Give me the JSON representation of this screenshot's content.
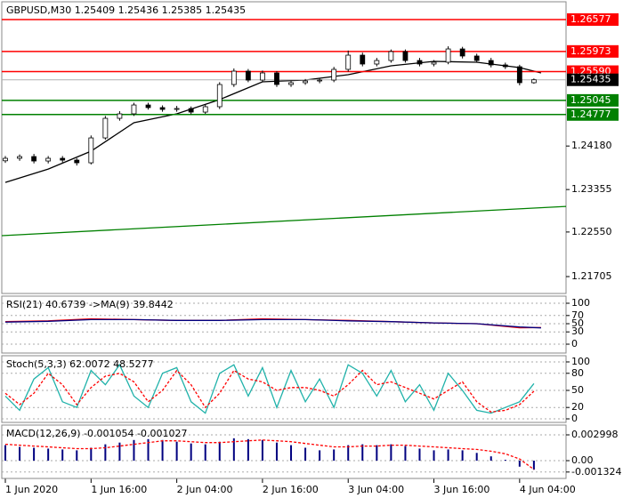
{
  "chart_data": [
    {
      "type": "candlestick",
      "title": "GBPUSD,M30  1.25409 1.25436 1.25385 1.25435",
      "x": [
        0,
        4,
        8,
        12,
        16,
        20,
        24,
        28,
        32,
        36,
        40,
        44,
        48,
        52,
        56,
        60,
        64,
        68,
        72,
        76,
        80,
        84,
        88,
        92,
        96,
        100,
        104,
        108,
        112,
        116,
        120,
        124,
        128,
        132,
        136,
        140,
        144,
        148
      ],
      "open": [
        1.239,
        1.23947,
        1.2398,
        1.23896,
        1.23947,
        1.23913,
        1.23862,
        1.24334,
        1.24705,
        1.2479,
        1.24958,
        1.24908,
        1.24874,
        1.24891,
        1.24823,
        1.24925,
        1.25346,
        1.25599,
        1.2543,
        1.25565,
        1.25346,
        1.2538,
        1.25413,
        1.2543,
        1.25633,
        1.25902,
        1.25734,
        1.25801,
        1.2597,
        1.25801,
        1.25734,
        1.25768,
        1.2602,
        1.25886,
        1.25801,
        1.25717,
        1.25683,
        1.2538
      ],
      "high": [
        1.2399,
        1.2402,
        1.2403,
        1.2399,
        1.2399,
        1.2395,
        1.2438,
        1.2475,
        1.2484,
        1.25,
        1.25,
        1.2495,
        1.2494,
        1.2493,
        1.2497,
        1.2539,
        1.2565,
        1.2564,
        1.2561,
        1.256,
        1.2542,
        1.2545,
        1.2547,
        1.2568,
        1.2599,
        1.2595,
        1.2585,
        1.2601,
        1.2601,
        1.2585,
        1.2581,
        1.2607,
        1.2606,
        1.2593,
        1.2585,
        1.2576,
        1.2572,
        1.2546
      ],
      "low": [
        1.2386,
        1.239,
        1.2385,
        1.2385,
        1.2387,
        1.2381,
        1.2383,
        1.243,
        1.2466,
        1.2475,
        1.2487,
        1.2483,
        1.2483,
        1.2478,
        1.2479,
        1.2488,
        1.253,
        1.2539,
        1.2539,
        1.253,
        1.253,
        1.2534,
        1.2537,
        1.2539,
        1.2559,
        1.2569,
        1.2569,
        1.2576,
        1.2576,
        1.2569,
        1.2569,
        1.2573,
        1.2584,
        1.2576,
        1.2567,
        1.2564,
        1.2533,
        1.2536
      ],
      "close": [
        1.23947,
        1.2398,
        1.23896,
        1.23947,
        1.23913,
        1.23862,
        1.24334,
        1.24705,
        1.2479,
        1.24958,
        1.24908,
        1.24874,
        1.24891,
        1.24823,
        1.24925,
        1.25346,
        1.25599,
        1.2543,
        1.25565,
        1.25346,
        1.2538,
        1.25413,
        1.2543,
        1.25633,
        1.25902,
        1.25734,
        1.25801,
        1.2597,
        1.25801,
        1.25734,
        1.25768,
        1.2602,
        1.25886,
        1.25801,
        1.25717,
        1.25683,
        1.2538,
        1.25435
      ],
      "up_color": "#ffffff",
      "down_color": "#000000",
      "series": [
        {
          "color": "#000000",
          "x": [
            0,
            12,
            24,
            36,
            48,
            60,
            72,
            84,
            96,
            108,
            120,
            132,
            144,
            150
          ],
          "values": [
            1.23491,
            1.23744,
            1.24082,
            1.24621,
            1.2479,
            1.25059,
            1.25397,
            1.2543,
            1.25531,
            1.257,
            1.25784,
            1.25768,
            1.25666,
            1.25565
          ]
        },
        {
          "color": "#008000",
          "x": [
            -1,
            157
          ],
          "values": [
            1.2248,
            1.23036
          ]
        }
      ],
      "levels": [
        {
          "value": 1.26577,
          "color": "#ff0000"
        },
        {
          "value": 1.25973,
          "color": "#ff0000"
        },
        {
          "value": 1.2559,
          "label": "1.25590",
          "color": "#ff0000"
        },
        {
          "value": 1.25045,
          "color": "#008000"
        },
        {
          "value": 1.24777,
          "color": "#008000"
        }
      ],
      "bid": 1.25435,
      "xlim": [
        -1,
        157
      ],
      "xticks": [
        {
          "value": 0,
          "label": "1 Jun 2020"
        },
        {
          "value": 24,
          "label": "1 Jun 16:00"
        },
        {
          "value": 48,
          "label": "2 Jun 04:00"
        },
        {
          "value": 72,
          "label": "2 Jun 16:00"
        },
        {
          "value": 96,
          "label": "3 Jun 04:00"
        },
        {
          "value": 120,
          "label": "3 Jun 16:00"
        },
        {
          "value": 144,
          "label": "4 Jun 04:00"
        }
      ],
      "ylim": [
        1.21385,
        1.26914
      ],
      "yticks": [
        {
          "value": 1.2418,
          "label": "1.24180"
        },
        1.23355,
        {
          "value": 1.2255,
          "label": "1.22550"
        },
        1.21705
      ]
    },
    {
      "type": "line",
      "title": "RSI(21) 40.6739 ->MA(9) 39.8442",
      "ylim": [
        -21.7,
        117.4
      ],
      "yticks": [
        100,
        70,
        50,
        30,
        0
      ],
      "series": [
        {
          "color": "#ff0000",
          "x": [
            0,
            12,
            24,
            36,
            48,
            60,
            72,
            84,
            96,
            108,
            120,
            132,
            144,
            150
          ],
          "values": [
            55,
            57,
            62,
            60,
            58,
            58,
            62,
            60,
            58,
            55,
            52,
            50,
            40,
            40.6739
          ]
        },
        {
          "color": "#000080",
          "x": [
            0,
            12,
            24,
            36,
            48,
            60,
            72,
            84,
            96,
            108,
            120,
            132,
            144,
            150
          ],
          "values": [
            54,
            56,
            60,
            60,
            58,
            58,
            60,
            60,
            57,
            55,
            52,
            50,
            42,
            39.8442
          ]
        }
      ]
    },
    {
      "type": "line",
      "title": "Stoch(5,3,3) 62.0072 48.5277",
      "ylim": [
        -6.25,
        110.9
      ],
      "yticks": [
        100,
        80,
        50,
        20,
        0
      ],
      "series": [
        {
          "color": "#20b2aa",
          "x": [
            0,
            4,
            8,
            12,
            16,
            20,
            24,
            28,
            32,
            36,
            40,
            44,
            48,
            52,
            56,
            60,
            64,
            68,
            72,
            76,
            80,
            84,
            88,
            92,
            96,
            100,
            104,
            108,
            112,
            116,
            120,
            124,
            128,
            132,
            136,
            140,
            144,
            148
          ],
          "values": [
            40,
            15,
            70,
            90,
            30,
            20,
            85,
            60,
            95,
            40,
            20,
            80,
            90,
            30,
            10,
            80,
            95,
            40,
            90,
            20,
            85,
            30,
            70,
            20,
            95,
            80,
            40,
            85,
            30,
            60,
            15,
            80,
            50,
            15,
            10,
            20,
            30,
            62.0072
          ]
        },
        {
          "color": "#ff0000",
          "dashed": true,
          "x": [
            0,
            4,
            8,
            12,
            16,
            20,
            24,
            28,
            32,
            36,
            40,
            44,
            48,
            52,
            56,
            60,
            64,
            68,
            72,
            76,
            80,
            84,
            88,
            92,
            96,
            100,
            104,
            108,
            112,
            116,
            120,
            124,
            128,
            132,
            136,
            140,
            144,
            148
          ],
          "values": [
            45,
            25,
            45,
            80,
            60,
            25,
            55,
            75,
            80,
            65,
            30,
            50,
            85,
            60,
            20,
            45,
            85,
            70,
            65,
            50,
            55,
            55,
            50,
            40,
            60,
            85,
            60,
            65,
            55,
            45,
            35,
            50,
            65,
            30,
            12,
            15,
            25,
            48.5277
          ]
        }
      ]
    },
    {
      "type": "bar",
      "title": "MACD(12,26,9) -0.001054 -0.001027",
      "ylim": [
        -0.002068,
        0.004135
      ],
      "yticks": [
        0.002998,
        {
          "value": 0,
          "label": "0.00"
        },
        -0.001324
      ],
      "x": [
        0,
        4,
        8,
        12,
        16,
        20,
        24,
        28,
        32,
        36,
        40,
        44,
        48,
        52,
        56,
        60,
        64,
        68,
        72,
        76,
        80,
        84,
        88,
        92,
        96,
        100,
        104,
        108,
        112,
        116,
        120,
        124,
        128,
        132,
        136,
        140,
        144,
        148
      ],
      "color": "#000080",
      "values": [
        0.0018,
        0.0016,
        0.0015,
        0.0014,
        0.0013,
        0.0012,
        0.0015,
        0.0019,
        0.0021,
        0.0024,
        0.0025,
        0.0024,
        0.0022,
        0.002,
        0.0019,
        0.0022,
        0.0026,
        0.0025,
        0.0024,
        0.0021,
        0.0018,
        0.0015,
        0.0012,
        0.0013,
        0.0018,
        0.0019,
        0.0018,
        0.0019,
        0.0017,
        0.0014,
        0.0012,
        0.0013,
        0.0012,
        0.0009,
        0.0005,
        0.0001,
        -0.0007,
        -0.001054
      ],
      "series": [
        {
          "color": "#ff0000",
          "dashed": true,
          "x": [
            0,
            4,
            8,
            12,
            16,
            20,
            24,
            28,
            32,
            36,
            40,
            44,
            48,
            52,
            56,
            60,
            64,
            68,
            72,
            76,
            80,
            84,
            88,
            92,
            96,
            100,
            104,
            108,
            112,
            116,
            120,
            124,
            128,
            132,
            136,
            140,
            144,
            148
          ],
          "values": [
            0.0019,
            0.0018,
            0.0017,
            0.0016,
            0.0015,
            0.0014,
            0.0014,
            0.0015,
            0.0017,
            0.0019,
            0.0021,
            0.0023,
            0.0023,
            0.0022,
            0.0021,
            0.0021,
            0.0022,
            0.0023,
            0.0024,
            0.0023,
            0.0022,
            0.002,
            0.0018,
            0.0016,
            0.0016,
            0.0017,
            0.0017,
            0.0018,
            0.0018,
            0.0017,
            0.0016,
            0.0015,
            0.0014,
            0.0013,
            0.0011,
            0.0008,
            0.0002,
            -0.001027
          ]
        }
      ]
    }
  ]
}
